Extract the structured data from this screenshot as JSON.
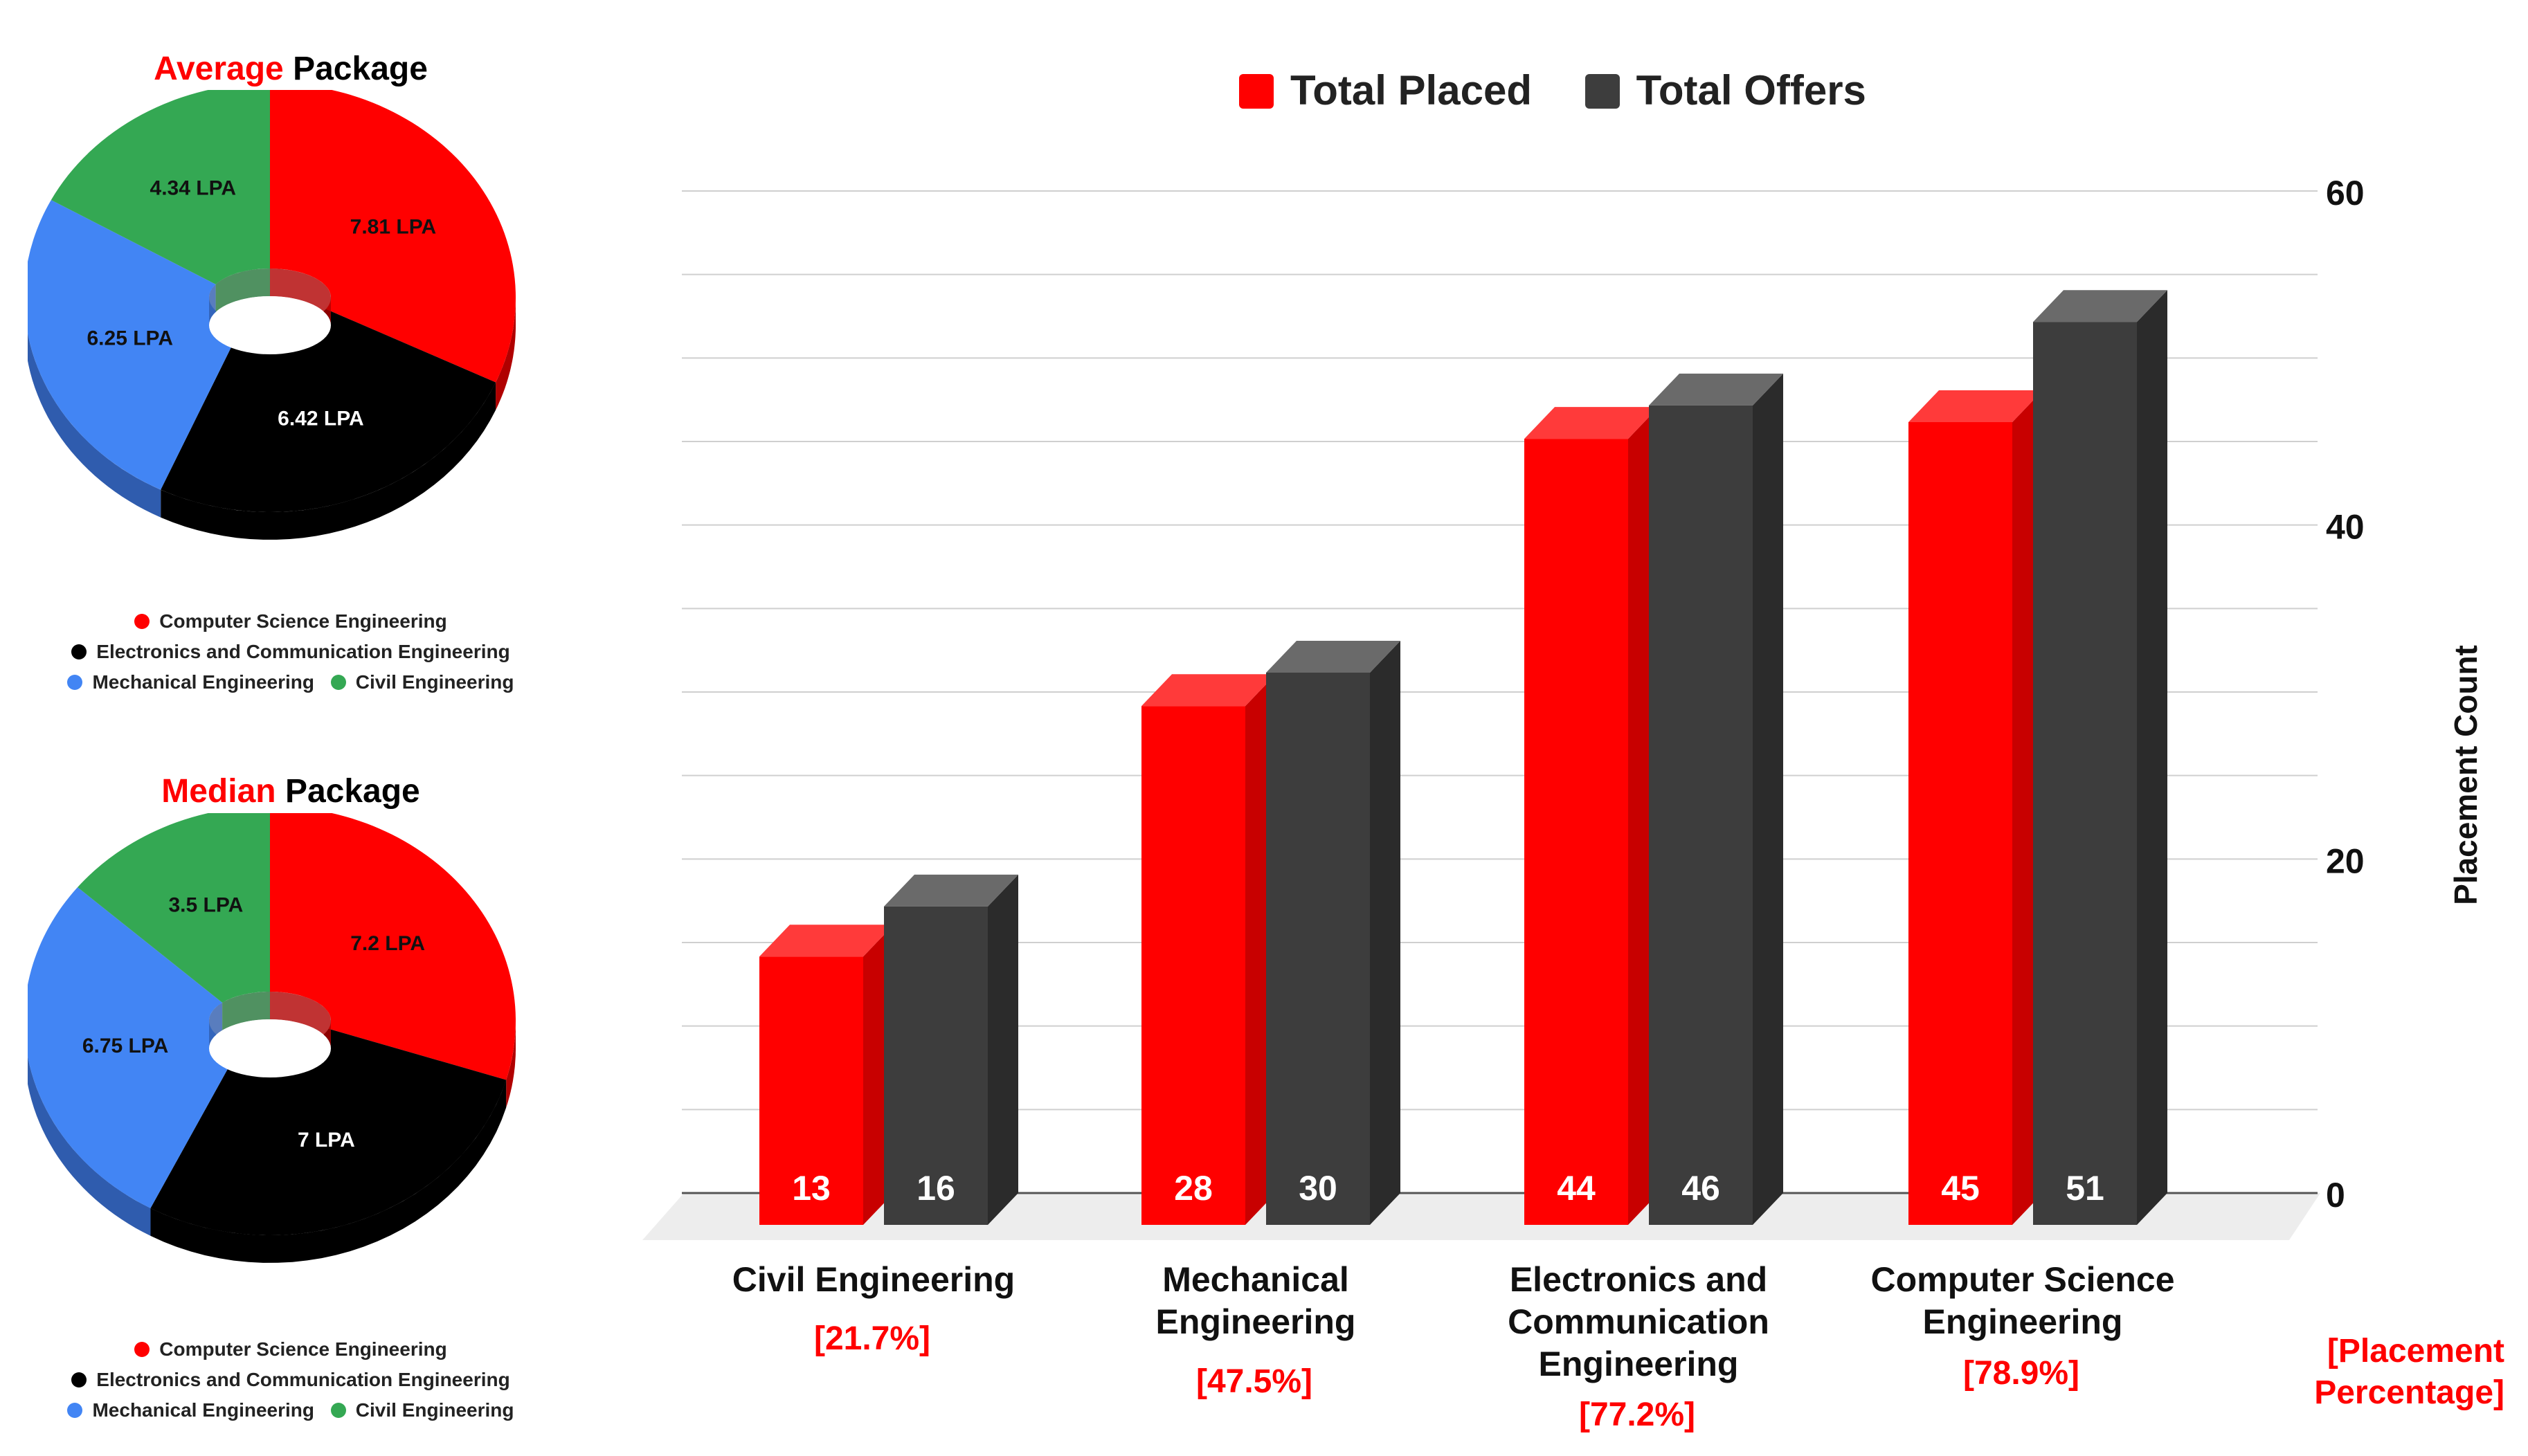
{
  "pies": [
    {
      "title_highlight": "Average",
      "title_rest": "Package",
      "slices": [
        {
          "label": "7.81 LPA",
          "value": 7.81,
          "color": "#ff0000",
          "dark": "#b00000"
        },
        {
          "label": "6.42 LPA",
          "value": 6.42,
          "color": "#000000",
          "dark": "#000000"
        },
        {
          "label": "6.25 LPA",
          "value": 6.25,
          "color": "#4285f4",
          "dark": "#2f5cae"
        },
        {
          "label": "4.34 LPA",
          "value": 4.34,
          "color": "#34a853",
          "dark": "#24763a"
        }
      ],
      "legend": [
        "Computer Science Engineering",
        "Electronics and Communication Engineering",
        "Mechanical Engineering",
        "Civil Engineering"
      ]
    },
    {
      "title_highlight": "Median",
      "title_rest": "Package",
      "slices": [
        {
          "label": "7.2 LPA",
          "value": 7.2,
          "color": "#ff0000",
          "dark": "#b00000"
        },
        {
          "label": "7 LPA",
          "value": 7,
          "color": "#000000",
          "dark": "#000000"
        },
        {
          "label": "6.75 LPA",
          "value": 6.75,
          "color": "#4285f4",
          "dark": "#2f5cae"
        },
        {
          "label": "3.5 LPA",
          "value": 3.5,
          "color": "#34a853",
          "dark": "#24763a"
        }
      ],
      "legend": [
        "Computer Science Engineering",
        "Electronics and Communication Engineering",
        "Mechanical Engineering",
        "Civil Engineering"
      ]
    }
  ],
  "chart_data": {
    "type": "bar",
    "categories": [
      [
        "Civil Engineering"
      ],
      [
        "Mechanical",
        "Engineering"
      ],
      [
        "Electronics and",
        "Communication",
        "Engineering"
      ],
      [
        "Computer Science",
        "Engineering"
      ]
    ],
    "percentages": [
      "[21.7%]",
      "[47.5%]",
      "[77.2%]",
      "[78.9%]"
    ],
    "series": [
      {
        "name": "Total Placed",
        "values": [
          13,
          28,
          44,
          45
        ],
        "color": "#ff0000"
      },
      {
        "name": "Total Offers",
        "values": [
          16,
          30,
          46,
          51
        ],
        "color": "#3d3d3d"
      }
    ],
    "ylabel": "Placement Count",
    "ylim": [
      0,
      60
    ],
    "yticks": [
      0,
      20,
      40,
      60
    ],
    "y_axis_side": "right",
    "percentage_label": [
      "[Placement",
      "Percentage]"
    ],
    "legend_position": "top",
    "grid": true
  }
}
